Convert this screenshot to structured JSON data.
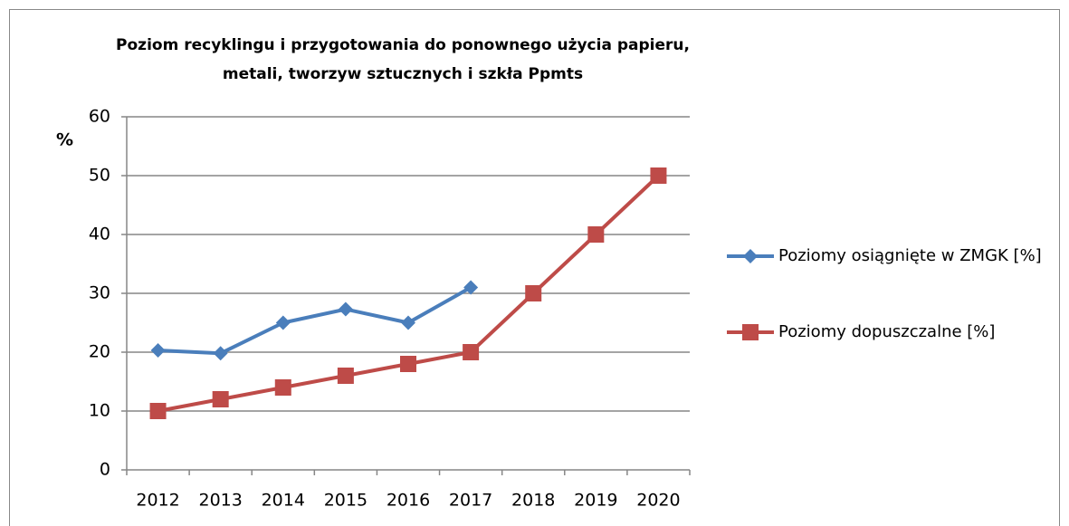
{
  "chart_data": {
    "type": "line",
    "title": "Poziom recyklingu i przygotowania do ponownego użycia papieru, metali, tworzyw sztucznych i szkła Ppmts",
    "y_label": "%",
    "categories": [
      "2012",
      "2013",
      "2014",
      "2015",
      "2016",
      "2017",
      "2018",
      "2019",
      "2020"
    ],
    "series": [
      {
        "name": "Poziomy osiągnięte w ZMGK [%]",
        "color": "#4a7ebb",
        "marker": "diamond",
        "values": [
          20.3,
          19.8,
          25,
          27.3,
          25,
          31,
          null,
          null,
          null
        ]
      },
      {
        "name": "Poziomy dopuszczalne [%]",
        "color": "#be4b48",
        "marker": "square",
        "values": [
          10,
          12,
          14,
          16,
          18,
          20,
          30,
          40,
          50
        ]
      }
    ],
    "ylim": [
      0,
      60
    ],
    "yticks": [
      0,
      10,
      20,
      30,
      40,
      50,
      60
    ],
    "grid": true,
    "legend": "right"
  }
}
